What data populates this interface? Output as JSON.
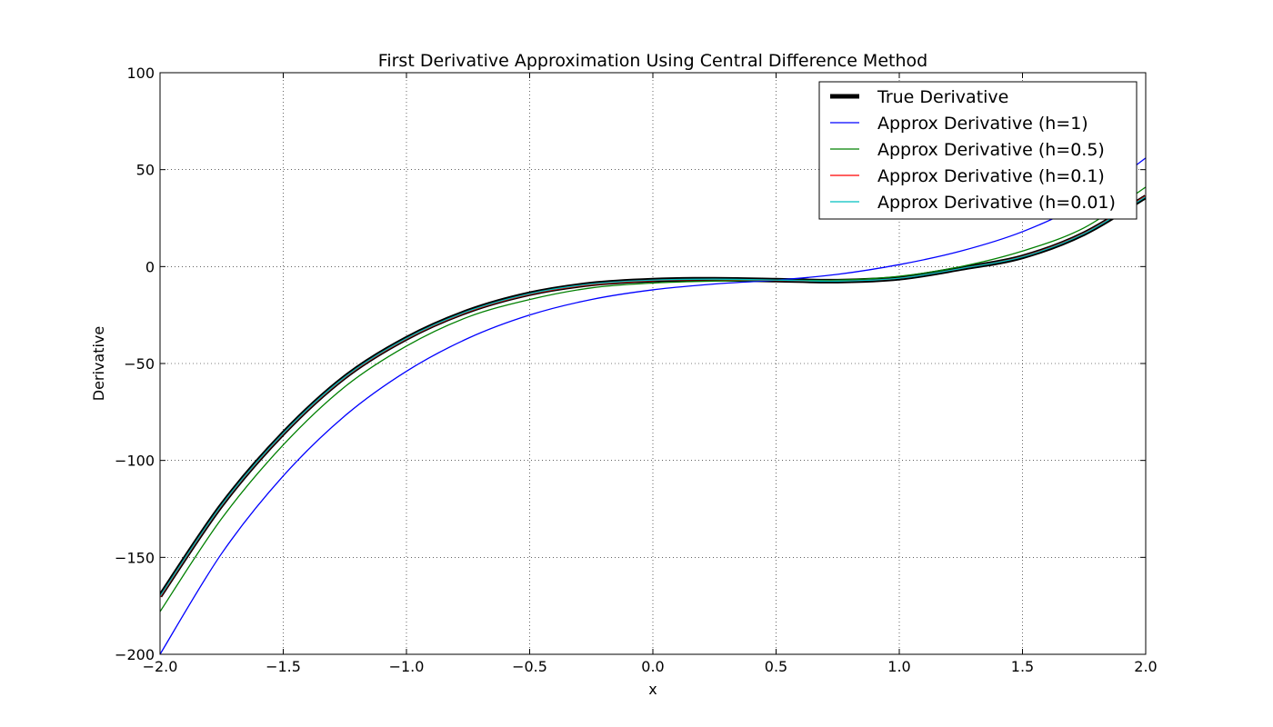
{
  "chart_data": {
    "type": "line",
    "title": "First Derivative Approximation Using Central Difference Method",
    "xlabel": "x",
    "ylabel": "Derivative",
    "xlim": [
      -2.0,
      2.0
    ],
    "ylim": [
      -200,
      100
    ],
    "grid": true,
    "grid_style": "dotted",
    "legend_position": "top-right",
    "x_ticks": [
      -2.0,
      -1.5,
      -1.0,
      -0.5,
      0.0,
      0.5,
      1.0,
      1.5,
      2.0
    ],
    "x_tick_labels": [
      "−2.0",
      "−1.5",
      "−1.0",
      "−0.5",
      "0.0",
      "0.5",
      "1.0",
      "1.5",
      "2.0"
    ],
    "y_ticks": [
      -200,
      -150,
      -100,
      -50,
      0,
      50,
      100
    ],
    "y_tick_labels": [
      "−200",
      "−150",
      "−100",
      "−50",
      "0",
      "50",
      "100"
    ],
    "x": [
      -2.0,
      -1.75,
      -1.5,
      -1.25,
      -1.0,
      -0.75,
      -0.5,
      -0.25,
      0.0,
      0.25,
      0.5,
      0.75,
      1.0,
      1.25,
      1.5,
      1.75,
      2.0
    ],
    "series": [
      {
        "name": "True Derivative",
        "color": "#000000",
        "width": 5,
        "values": [
          -170,
          -123,
          -86,
          -57,
          -37,
          -23,
          -14,
          -9,
          -7,
          -6.5,
          -7,
          -7.5,
          -6,
          -1,
          5,
          17,
          36
        ]
      },
      {
        "name": "Approx Derivative (h=1)",
        "color": "#0000ff",
        "width": 1.3,
        "values": [
          -200,
          -148,
          -108,
          -77,
          -54,
          -37,
          -25,
          -17,
          -12,
          -9,
          -7,
          -4,
          1,
          8,
          18,
          33,
          56
        ]
      },
      {
        "name": "Approx Derivative (h=0.5)",
        "color": "#008000",
        "width": 1.3,
        "values": [
          -178,
          -130,
          -92,
          -62,
          -41,
          -26,
          -17,
          -11,
          -8.5,
          -7.5,
          -7,
          -7,
          -5,
          0,
          8,
          20,
          41
        ]
      },
      {
        "name": "Approx Derivative (h=0.1)",
        "color": "#ff0000",
        "width": 1.3,
        "values": [
          -170.5,
          -123.3,
          -86.3,
          -57.3,
          -37.3,
          -23.3,
          -14.3,
          -9.3,
          -7.2,
          -6.7,
          -7.1,
          -7.5,
          -6,
          -1,
          5.2,
          17.2,
          36.4
        ]
      },
      {
        "name": "Approx Derivative (h=0.01)",
        "color": "#00bfbf",
        "width": 1.3,
        "values": [
          -170,
          -123,
          -86,
          -57,
          -37,
          -23,
          -14,
          -9,
          -7,
          -6.5,
          -7,
          -7.5,
          -6,
          -1,
          5,
          17,
          36
        ]
      }
    ]
  }
}
